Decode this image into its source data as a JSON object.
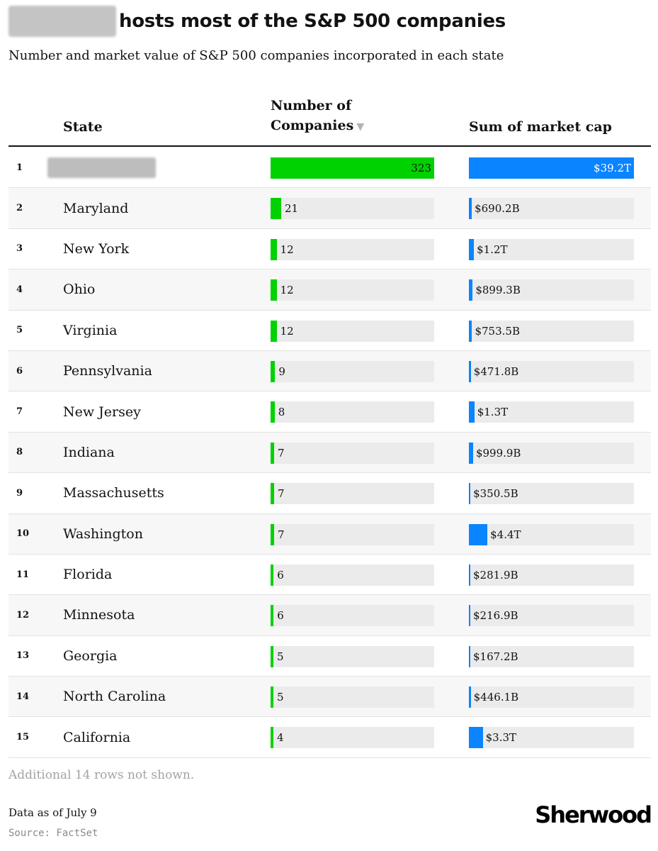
{
  "header": {
    "title": "hosts most of the S&P 500 companies",
    "subtitle": "Number and market value of S&P 500 companies incorporated in each state"
  },
  "columns": {
    "state": "State",
    "count_line1": "Number of",
    "count_line2": "Companies",
    "sort_indicator": "▼",
    "cap": "Sum of market cap"
  },
  "colors": {
    "count_bar": "#00d100",
    "cap_bar": "#0a84ff",
    "track": "#ebebeb"
  },
  "chart_data": {
    "type": "table",
    "columns": [
      "State",
      "Number of Companies",
      "Sum of market cap"
    ],
    "count_max": 323,
    "cap_max_billions": 39200,
    "rows": [
      {
        "rank": "1",
        "state": "",
        "redacted": true,
        "count": 323,
        "cap_label": "$39.2T",
        "cap_billions": 39200
      },
      {
        "rank": "2",
        "state": "Maryland",
        "count": 21,
        "cap_label": "$690.2B",
        "cap_billions": 690.2
      },
      {
        "rank": "3",
        "state": "New York",
        "count": 12,
        "cap_label": "$1.2T",
        "cap_billions": 1200
      },
      {
        "rank": "4",
        "state": "Ohio",
        "count": 12,
        "cap_label": "$899.3B",
        "cap_billions": 899.3
      },
      {
        "rank": "5",
        "state": "Virginia",
        "count": 12,
        "cap_label": "$753.5B",
        "cap_billions": 753.5
      },
      {
        "rank": "6",
        "state": "Pennsylvania",
        "count": 9,
        "cap_label": "$471.8B",
        "cap_billions": 471.8
      },
      {
        "rank": "7",
        "state": "New Jersey",
        "count": 8,
        "cap_label": "$1.3T",
        "cap_billions": 1300
      },
      {
        "rank": "8",
        "state": "Indiana",
        "count": 7,
        "cap_label": "$999.9B",
        "cap_billions": 999.9
      },
      {
        "rank": "9",
        "state": "Massachusetts",
        "count": 7,
        "cap_label": "$350.5B",
        "cap_billions": 350.5
      },
      {
        "rank": "10",
        "state": "Washington",
        "count": 7,
        "cap_label": "$4.4T",
        "cap_billions": 4400
      },
      {
        "rank": "11",
        "state": "Florida",
        "count": 6,
        "cap_label": "$281.9B",
        "cap_billions": 281.9
      },
      {
        "rank": "12",
        "state": "Minnesota",
        "count": 6,
        "cap_label": "$216.9B",
        "cap_billions": 216.9
      },
      {
        "rank": "13",
        "state": "Georgia",
        "count": 5,
        "cap_label": "$167.2B",
        "cap_billions": 167.2
      },
      {
        "rank": "14",
        "state": "North Carolina",
        "count": 5,
        "cap_label": "$446.1B",
        "cap_billions": 446.1
      },
      {
        "rank": "15",
        "state": "California",
        "count": 4,
        "cap_label": "$3.3T",
        "cap_billions": 3300
      }
    ]
  },
  "footer": {
    "note": "Additional 14 rows not shown.",
    "data_as_of": "Data as of July 9",
    "source": "Source: FactSet",
    "logo": "Sherwood"
  }
}
